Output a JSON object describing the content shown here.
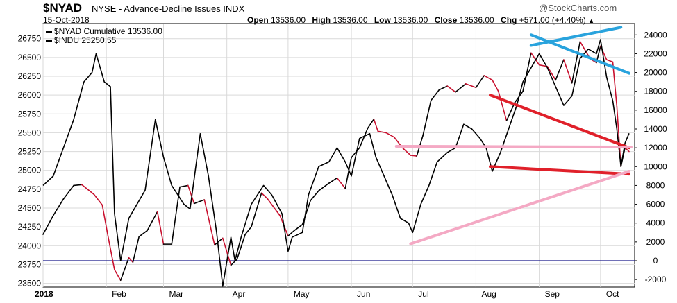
{
  "header": {
    "symbol": "$NYAD",
    "exchange_title": "NYSE - Advance-Decline Issues INDX",
    "brand": "@StockCharts.com",
    "date": "15-Oct-2018",
    "open_label": "Open",
    "open_value": "13536.00",
    "high_label": "High",
    "high_value": "13536.00",
    "low_label": "Low",
    "low_value": "13536.00",
    "close_label": "Close",
    "close_value": "13536.00",
    "chg_label": "Chg",
    "chg_value": "+571.00 (+4.40%)",
    "chg_arrow": "▲"
  },
  "legend": {
    "series1": "$NYAD Cumulative 13536.00",
    "series2": "$INDU 25250.55"
  },
  "colors": {
    "indu_line": "#000000",
    "indu_down": "#c8102e",
    "nyad_line": "#000000",
    "zero_line": "#1a1a8c",
    "grid": "#d9d9d9",
    "trend_red": "#e0202a",
    "trend_pink": "#f4a9c4",
    "trend_blue": "#29a3dd"
  },
  "chart_data": {
    "type": "line",
    "x_range": [
      "2018-01-01",
      "2018-10-15"
    ],
    "x_ticks": [
      {
        "label": "2018",
        "date": "2018-01-01",
        "bold": true
      },
      {
        "label": "Feb",
        "date": "2018-02-01"
      },
      {
        "label": "Mar",
        "date": "2018-03-01"
      },
      {
        "label": "Apr",
        "date": "2018-04-01"
      },
      {
        "label": "May",
        "date": "2018-05-01"
      },
      {
        "label": "Jun",
        "date": "2018-06-01"
      },
      {
        "label": "Jul",
        "date": "2018-07-01"
      },
      {
        "label": "Aug",
        "date": "2018-08-01"
      },
      {
        "label": "Sep",
        "date": "2018-09-01"
      },
      {
        "label": "Oct",
        "date": "2018-10-01"
      }
    ],
    "left_axis": {
      "series": "$INDU",
      "range": [
        23450,
        26950
      ],
      "ticks": [
        "26750",
        "26500",
        "26250",
        "26000",
        "25750",
        "25500",
        "25250",
        "25000",
        "24750",
        "24500",
        "24250",
        "24000",
        "23750",
        "23500"
      ]
    },
    "right_axis": {
      "series": "$NYAD Cumulative",
      "range": [
        -2800,
        25200
      ],
      "ticks": [
        "24000",
        "22000",
        "20000",
        "18000",
        "16000",
        "14000",
        "12000",
        "10000",
        "8000",
        "6000",
        "4000",
        "2000",
        "0",
        "-2000"
      ]
    },
    "reference_line": {
      "axis": "right",
      "value": 0
    },
    "series": [
      {
        "name": "$INDU",
        "axis": "left",
        "points": [
          [
            "2018-01-01",
            24150
          ],
          [
            "2018-01-06",
            24400
          ],
          [
            "2018-01-11",
            24620
          ],
          [
            "2018-01-16",
            24800
          ],
          [
            "2018-01-20",
            24810
          ],
          [
            "2018-01-26",
            24680
          ],
          [
            "2018-01-30",
            24540
          ],
          [
            "2018-02-02",
            24100
          ],
          [
            "2018-02-05",
            23680
          ],
          [
            "2018-02-08",
            23540
          ],
          [
            "2018-02-12",
            23840
          ],
          [
            "2018-02-14",
            23780
          ],
          [
            "2018-02-17",
            24120
          ],
          [
            "2018-02-21",
            24200
          ],
          [
            "2018-02-26",
            24450
          ],
          [
            "2018-03-01",
            24020
          ],
          [
            "2018-03-05",
            24020
          ],
          [
            "2018-03-09",
            24780
          ],
          [
            "2018-03-13",
            24800
          ],
          [
            "2018-03-16",
            24560
          ],
          [
            "2018-03-21",
            24610
          ],
          [
            "2018-03-26",
            24010
          ],
          [
            "2018-03-30",
            24100
          ],
          [
            "2018-04-03",
            23740
          ],
          [
            "2018-04-06",
            23820
          ],
          [
            "2018-04-10",
            24150
          ],
          [
            "2018-04-13",
            24250
          ],
          [
            "2018-04-18",
            24700
          ],
          [
            "2018-04-21",
            24620
          ],
          [
            "2018-04-27",
            24400
          ],
          [
            "2018-05-01",
            24130
          ],
          [
            "2018-05-04",
            24200
          ],
          [
            "2018-05-08",
            24280
          ],
          [
            "2018-05-12",
            24600
          ],
          [
            "2018-05-16",
            24730
          ],
          [
            "2018-05-21",
            24830
          ],
          [
            "2018-05-25",
            24900
          ],
          [
            "2018-05-29",
            24760
          ],
          [
            "2018-06-01",
            25170
          ],
          [
            "2018-06-05",
            25300
          ],
          [
            "2018-06-09",
            25560
          ],
          [
            "2018-06-12",
            25680
          ],
          [
            "2018-06-14",
            25520
          ],
          [
            "2018-06-18",
            25500
          ],
          [
            "2018-06-22",
            25440
          ],
          [
            "2018-06-26",
            25300
          ],
          [
            "2018-06-30",
            25200
          ],
          [
            "2018-07-03",
            25190
          ],
          [
            "2018-07-06",
            25460
          ],
          [
            "2018-07-10",
            25930
          ],
          [
            "2018-07-14",
            26070
          ],
          [
            "2018-07-18",
            26120
          ],
          [
            "2018-07-22",
            26040
          ],
          [
            "2018-07-27",
            26150
          ],
          [
            "2018-08-01",
            26100
          ],
          [
            "2018-08-05",
            26260
          ],
          [
            "2018-08-09",
            26200
          ],
          [
            "2018-08-12",
            26050
          ],
          [
            "2018-08-16",
            25660
          ],
          [
            "2018-08-20",
            25900
          ],
          [
            "2018-08-24",
            26050
          ],
          [
            "2018-08-28",
            26560
          ],
          [
            "2018-09-01",
            26400
          ],
          [
            "2018-09-05",
            26380
          ],
          [
            "2018-09-09",
            26200
          ],
          [
            "2018-09-13",
            26470
          ],
          [
            "2018-09-17",
            26160
          ],
          [
            "2018-09-21",
            26710
          ],
          [
            "2018-09-26",
            26480
          ],
          [
            "2018-09-29",
            26430
          ],
          [
            "2018-10-01",
            26650
          ],
          [
            "2018-10-04",
            26470
          ],
          [
            "2018-10-07",
            26440
          ],
          [
            "2018-10-09",
            25850
          ],
          [
            "2018-10-11",
            25050
          ],
          [
            "2018-10-13",
            25300
          ],
          [
            "2018-10-15",
            25250
          ]
        ]
      },
      {
        "name": "$NYAD Cumulative",
        "axis": "right",
        "points": [
          [
            "2018-01-01",
            8000
          ],
          [
            "2018-01-06",
            9000
          ],
          [
            "2018-01-11",
            12000
          ],
          [
            "2018-01-16",
            15000
          ],
          [
            "2018-01-21",
            19000
          ],
          [
            "2018-01-25",
            20000
          ],
          [
            "2018-01-27",
            22000
          ],
          [
            "2018-01-31",
            19000
          ],
          [
            "2018-02-03",
            18500
          ],
          [
            "2018-02-05",
            5000
          ],
          [
            "2018-02-08",
            0
          ],
          [
            "2018-02-12",
            4500
          ],
          [
            "2018-02-16",
            6000
          ],
          [
            "2018-02-20",
            7500
          ],
          [
            "2018-02-25",
            15000
          ],
          [
            "2018-03-01",
            11000
          ],
          [
            "2018-03-05",
            8000
          ],
          [
            "2018-03-11",
            6000
          ],
          [
            "2018-03-14",
            5500
          ],
          [
            "2018-03-19",
            13500
          ],
          [
            "2018-03-23",
            9000
          ],
          [
            "2018-03-27",
            3000
          ],
          [
            "2018-03-30",
            -2700
          ],
          [
            "2018-04-03",
            2500
          ],
          [
            "2018-04-05",
            0
          ],
          [
            "2018-04-08",
            2500
          ],
          [
            "2018-04-13",
            6000
          ],
          [
            "2018-04-19",
            8000
          ],
          [
            "2018-04-23",
            7000
          ],
          [
            "2018-04-28",
            5000
          ],
          [
            "2018-05-01",
            1000
          ],
          [
            "2018-05-03",
            2500
          ],
          [
            "2018-05-08",
            3000
          ],
          [
            "2018-05-11",
            7000
          ],
          [
            "2018-05-16",
            10000
          ],
          [
            "2018-05-21",
            10500
          ],
          [
            "2018-05-25",
            12000
          ],
          [
            "2018-05-29",
            10500
          ],
          [
            "2018-06-01",
            9000
          ],
          [
            "2018-06-05",
            13000
          ],
          [
            "2018-06-10",
            13500
          ],
          [
            "2018-06-13",
            11000
          ],
          [
            "2018-06-17",
            9000
          ],
          [
            "2018-06-21",
            7000
          ],
          [
            "2018-06-25",
            4500
          ],
          [
            "2018-06-29",
            4000
          ],
          [
            "2018-07-01",
            3000
          ],
          [
            "2018-07-05",
            6000
          ],
          [
            "2018-07-09",
            8000
          ],
          [
            "2018-07-13",
            10500
          ],
          [
            "2018-07-18",
            11500
          ],
          [
            "2018-07-22",
            12000
          ],
          [
            "2018-07-26",
            14500
          ],
          [
            "2018-07-30",
            14000
          ],
          [
            "2018-08-03",
            13000
          ],
          [
            "2018-08-06",
            12000
          ],
          [
            "2018-08-09",
            9500
          ],
          [
            "2018-08-13",
            11500
          ],
          [
            "2018-08-17",
            14000
          ],
          [
            "2018-08-21",
            16500
          ],
          [
            "2018-08-24",
            19000
          ],
          [
            "2018-08-28",
            20500
          ],
          [
            "2018-09-01",
            22000
          ],
          [
            "2018-09-05",
            20500
          ],
          [
            "2018-09-09",
            18500
          ],
          [
            "2018-09-13",
            16500
          ],
          [
            "2018-09-17",
            17500
          ],
          [
            "2018-09-21",
            21500
          ],
          [
            "2018-09-25",
            22500
          ],
          [
            "2018-09-29",
            22000
          ],
          [
            "2018-10-01",
            23500
          ],
          [
            "2018-10-04",
            19500
          ],
          [
            "2018-10-07",
            17000
          ],
          [
            "2018-10-09",
            14000
          ],
          [
            "2018-10-11",
            10000
          ],
          [
            "2018-10-13",
            12500
          ],
          [
            "2018-10-15",
            13536
          ]
        ]
      }
    ],
    "trendlines": [
      {
        "color": "blue",
        "axis": "left",
        "from": [
          "2018-08-28",
          26660
        ],
        "to": [
          "2018-10-11",
          26900
        ]
      },
      {
        "color": "blue",
        "axis": "left",
        "from": [
          "2018-08-28",
          26800
        ],
        "to": [
          "2018-10-15",
          26290
        ]
      },
      {
        "color": "red",
        "axis": "left",
        "from": [
          "2018-08-08",
          26000
        ],
        "to": [
          "2018-10-15",
          25300
        ]
      },
      {
        "color": "red",
        "axis": "left",
        "from": [
          "2018-08-08",
          25050
        ],
        "to": [
          "2018-10-15",
          24950
        ]
      },
      {
        "color": "pink",
        "axis": "left",
        "from": [
          "2018-06-23",
          25320
        ],
        "to": [
          "2018-10-16",
          25310
        ]
      },
      {
        "color": "pink",
        "axis": "right",
        "from": [
          "2018-06-30",
          1800
        ],
        "to": [
          "2018-10-15",
          9500
        ]
      }
    ]
  }
}
